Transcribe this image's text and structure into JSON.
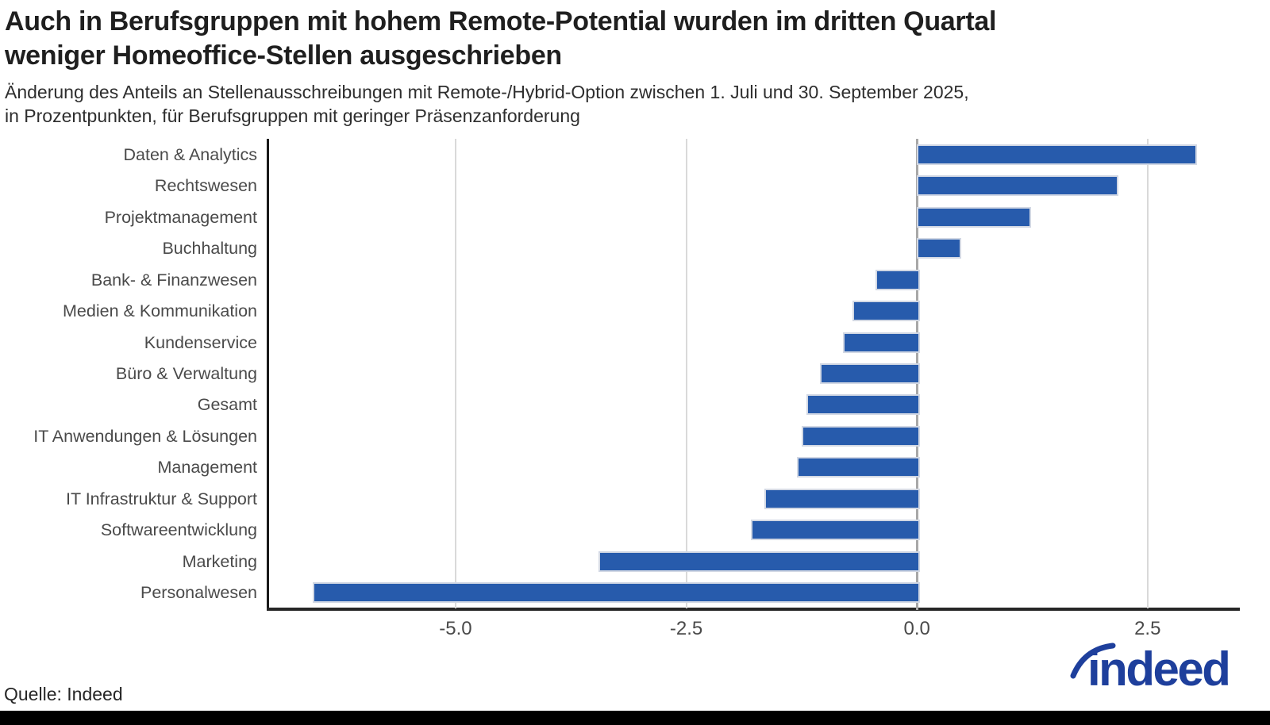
{
  "chart_data": {
    "type": "bar",
    "orientation": "horizontal",
    "title_lines": [
      "Auch in Berufsgruppen mit hohem Remote-Potential wurden im dritten Quartal",
      "weniger Homeoffice-Stellen ausgeschrieben"
    ],
    "subtitle_lines": [
      "Änderung des Anteils an Stellenausschreibungen mit Remote-/Hybrid-Option zwischen 1. Juli und 30. September 2025,",
      "in Prozentpunkten, für Berufsgruppen mit geringer Präsenzanforderung"
    ],
    "categories": [
      "Daten & Analytics",
      "Rechtswesen",
      "Projektmanagement",
      "Buchhaltung",
      "Bank- & Finanzwesen",
      "Medien & Kommunikation",
      "Kundenservice",
      "Büro & Verwaltung",
      "Gesamt",
      "IT Anwendungen & Lösungen",
      "Management",
      "IT Infrastruktur & Support",
      "Softwareentwicklung",
      "Marketing",
      "Personalwesen"
    ],
    "values": [
      3.0,
      2.15,
      1.2,
      0.45,
      -0.45,
      -0.7,
      -0.8,
      -1.05,
      -1.2,
      -1.25,
      -1.3,
      -1.65,
      -1.8,
      -3.45,
      -6.55
    ],
    "x_ticks": [
      -5.0,
      -2.5,
      0.0,
      2.5
    ],
    "x_tick_labels": [
      "-5.0",
      "-2.5",
      "0.0",
      "2.5"
    ],
    "xlim": [
      -7.03,
      3.5
    ],
    "grid": true,
    "legend_position": "none"
  },
  "colors": {
    "bar": "#275bac",
    "bar_edge": "#d2d8e4",
    "gridline": "#d9d9d9",
    "zero_line": "#a8a8a8",
    "axis": "#1a1a1a",
    "axis_bottom": "#262626",
    "logo_blue": "#1e3f9c"
  },
  "footer": {
    "source": "Quelle: Indeed",
    "logo_text": "indeed"
  }
}
